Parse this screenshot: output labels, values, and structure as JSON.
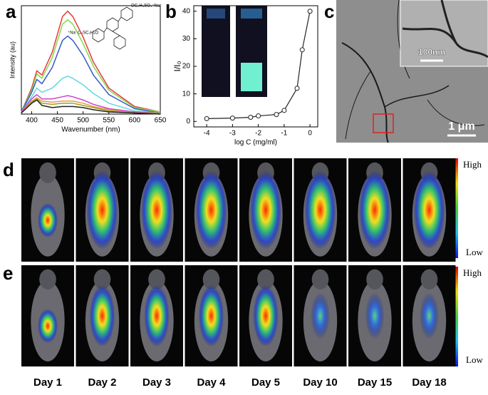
{
  "chart_data": [
    {
      "type": "line",
      "x_label": "Wavenumber (nm)",
      "y_label": "Intensity (au)",
      "x": [
        380,
        400,
        410,
        420,
        440,
        460,
        470,
        480,
        500,
        520,
        550,
        600,
        650
      ],
      "xlim": [
        380,
        650
      ],
      "xticks": [
        400,
        450,
        500,
        550,
        600,
        650
      ],
      "ylim": [
        0,
        100
      ],
      "annotations": [
        "OC₂H₄SO₃⁻Na⁺",
        "⁺Na⁻O₃SC₂H₄O"
      ],
      "series": [
        {
          "color": "#e53b3b",
          "values": [
            2,
            24,
            40,
            36,
            57,
            90,
            95,
            90,
            71,
            48,
            24,
            7,
            2
          ]
        },
        {
          "color": "#86d84a",
          "values": [
            2,
            22,
            37,
            33,
            52,
            83,
            87,
            83,
            65,
            44,
            22,
            6,
            2
          ]
        },
        {
          "color": "#3558c8",
          "values": [
            2,
            20,
            32,
            28,
            43,
            68,
            72,
            68,
            54,
            36,
            18,
            5,
            1
          ]
        },
        {
          "color": "#60d8e0",
          "values": [
            2,
            16,
            24,
            20,
            24,
            33,
            35,
            33,
            27,
            19,
            10,
            3,
            1
          ]
        },
        {
          "color": "#d040d0",
          "values": [
            2,
            14,
            18,
            14,
            14,
            16,
            17,
            16,
            13,
            9,
            5,
            2,
            1
          ]
        },
        {
          "color": "#e0a040",
          "values": [
            1,
            12,
            15,
            12,
            11,
            12,
            12,
            12,
            10,
            7,
            4,
            1,
            1
          ]
        },
        {
          "color": "#a0a020",
          "values": [
            1,
            11,
            14,
            10,
            9,
            10,
            10,
            10,
            8,
            6,
            3,
            1,
            1
          ]
        },
        {
          "color": "#222222",
          "values": [
            1,
            10,
            13,
            8,
            6,
            7,
            7,
            7,
            6,
            4,
            2,
            1,
            0
          ]
        }
      ]
    },
    {
      "type": "line",
      "x_label": "log C (mg/ml)",
      "y_label": "I/I₀",
      "x": [
        -4,
        -3,
        -2.3,
        -2,
        -1.3,
        -1,
        -0.5,
        -0.3,
        0
      ],
      "xlim": [
        -4.5,
        0.3
      ],
      "xticks": [
        -4,
        -3,
        -2,
        -1,
        0
      ],
      "ylim": [
        -2,
        42
      ],
      "yticks": [
        0,
        10,
        20,
        30,
        40
      ],
      "series": [
        {
          "color": "#222222",
          "values": [
            1,
            1.2,
            1.5,
            2,
            2.5,
            4,
            12,
            26,
            40
          ]
        }
      ]
    }
  ],
  "panels": {
    "a": "a",
    "b": "b",
    "c": "c",
    "d": "d",
    "e": "e"
  },
  "scale_bars": {
    "inset": "100nm",
    "main": "1 μm"
  },
  "colorbar": {
    "high": "High",
    "low": "Low"
  },
  "days": [
    "Day 1",
    "Day 2",
    "Day 3",
    "Day 4",
    "Day 5",
    "Day 10",
    "Day 15",
    "Day 18"
  ]
}
